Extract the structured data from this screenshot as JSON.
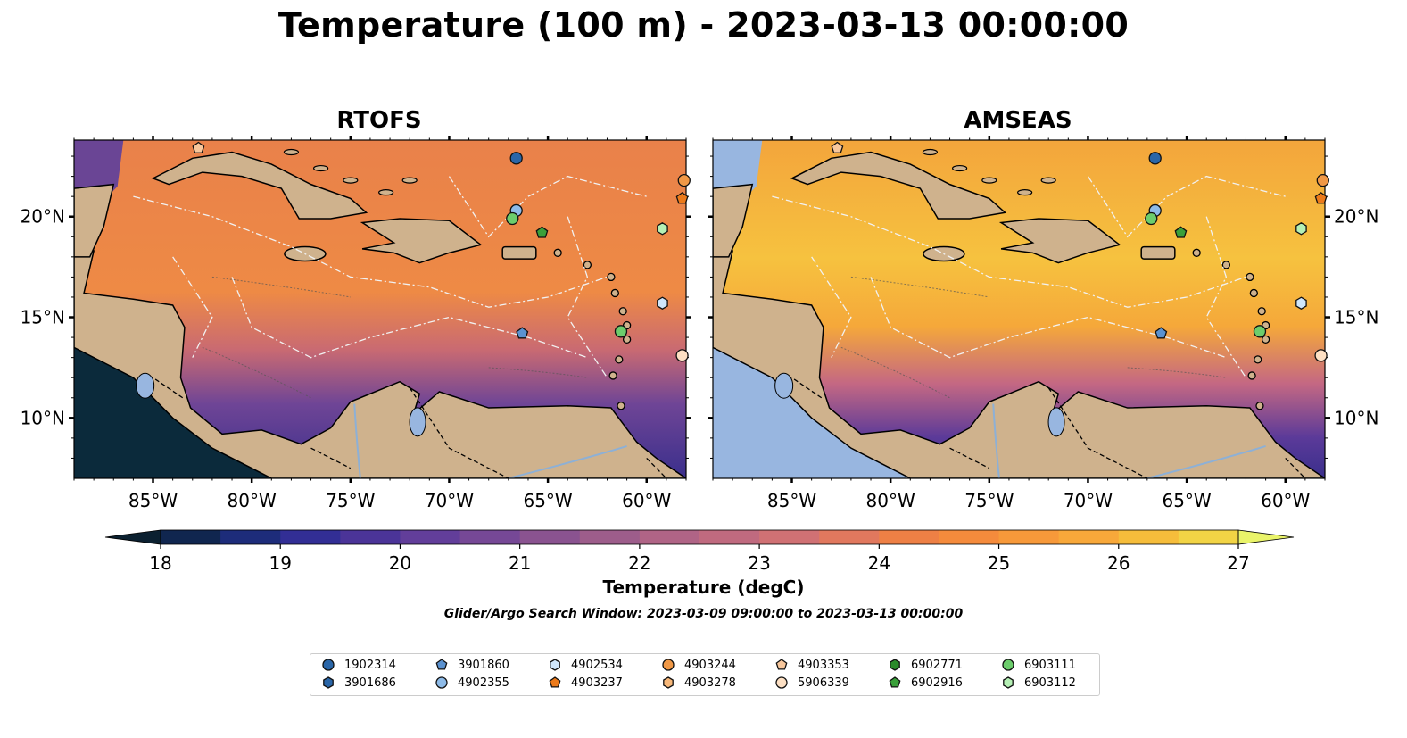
{
  "title": "Temperature (100 m) - 2023-03-13 00:00:00",
  "panels": [
    {
      "name": "RTOFS"
    },
    {
      "name": "AMSEAS"
    }
  ],
  "axes": {
    "lon_ticks": [
      "85°W",
      "80°W",
      "75°W",
      "70°W",
      "65°W",
      "60°W"
    ],
    "lat_ticks": [
      "20°N",
      "15°N",
      "10°N"
    ]
  },
  "colorbar": {
    "label": "Temperature (degC)",
    "ticks": [
      "18",
      "19",
      "20",
      "21",
      "22",
      "23",
      "24",
      "25",
      "26",
      "27"
    ],
    "colors": [
      "#0b2a3b",
      "#10264f",
      "#1d2c7a",
      "#322e95",
      "#4b3498",
      "#623e9a",
      "#764896",
      "#8a5390",
      "#9d5d8b",
      "#b06486",
      "#c06a7f",
      "#d07174",
      "#e1785e",
      "#ee8045",
      "#f58b3c",
      "#f7993a",
      "#f8a83a",
      "#f6bd3b",
      "#f2d445",
      "#eaf259"
    ],
    "under_color": "#0b2030",
    "over_color": "#eaf46a"
  },
  "search_window": "Glider/Argo Search Window: 2023-03-09 09:00:00 to 2023-03-13 00:00:00",
  "map_colors": {
    "land": "#cfb28d",
    "water": "#98b6e0",
    "rtofs_ocean": "#e3784c",
    "amseas_ocean": "#f39a3f"
  },
  "legend": [
    {
      "id": "1902314",
      "marker": "circle",
      "color": "#2a66a8"
    },
    {
      "id": "3901686",
      "marker": "hexagon",
      "color": "#2a66a8"
    },
    {
      "id": "3901860",
      "marker": "pentagon",
      "color": "#5b92d0"
    },
    {
      "id": "4902355",
      "marker": "circle",
      "color": "#8ebbe8"
    },
    {
      "id": "4902534",
      "marker": "hexagon",
      "color": "#cfe6fb"
    },
    {
      "id": "4903237",
      "marker": "pentagon",
      "color": "#ec7a1a"
    },
    {
      "id": "4903244",
      "marker": "circle",
      "color": "#f09846"
    },
    {
      "id": "4903278",
      "marker": "hexagon",
      "color": "#f7b87a"
    },
    {
      "id": "4903353",
      "marker": "pentagon",
      "color": "#f8c79c"
    },
    {
      "id": "5906339",
      "marker": "circle",
      "color": "#fde0c4"
    },
    {
      "id": "6902771",
      "marker": "hexagon",
      "color": "#2a8a2a"
    },
    {
      "id": "6902916",
      "marker": "pentagon",
      "color": "#3aa03a"
    },
    {
      "id": "6903111",
      "marker": "circle",
      "color": "#6ccd6c"
    },
    {
      "id": "6903112",
      "marker": "hexagon",
      "color": "#b5f0b5"
    }
  ]
}
